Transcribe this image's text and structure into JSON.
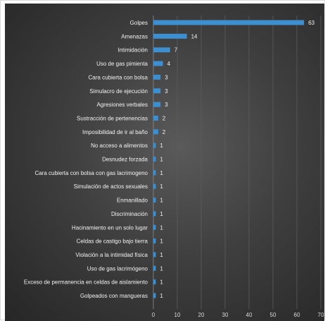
{
  "chart_data": {
    "type": "bar",
    "orientation": "horizontal",
    "categories": [
      "Golpes",
      "Amenazas",
      "Intimidación",
      "Uso de gas pimienta",
      "Cara cubierta con bolsa",
      "Simulacro de ejecución",
      "Agresiones verbales",
      "Sustracción de pertenencias",
      "Imposibilidad de ir al baño",
      "No acceso a alimentos",
      "Desnudez forzada",
      "Cara cubierta con bolsa con gas lacrimogeno",
      "Simulación de actos sexuales",
      "Enmanillado",
      "Discriminación",
      "Hacinamiento en un solo lugar",
      "Celdas de castigo bajo tierra",
      "Violación a la intimidad física",
      "Uso de gas lacrimógeno",
      "Exceso de permanencia en celdas de aislamiento",
      "Golpeados con mangueras"
    ],
    "values": [
      63,
      14,
      7,
      4,
      3,
      3,
      3,
      2,
      2,
      1,
      1,
      1,
      1,
      1,
      1,
      1,
      1,
      1,
      1,
      1,
      1
    ],
    "xlim": [
      0,
      70
    ],
    "xticks": [
      0,
      10,
      20,
      30,
      40,
      50,
      60,
      70
    ],
    "grid": true,
    "legend": "none",
    "title": "",
    "xlabel": "",
    "ylabel": "",
    "bar_color": "#3d8fd0",
    "background": "#3a3a3a"
  }
}
